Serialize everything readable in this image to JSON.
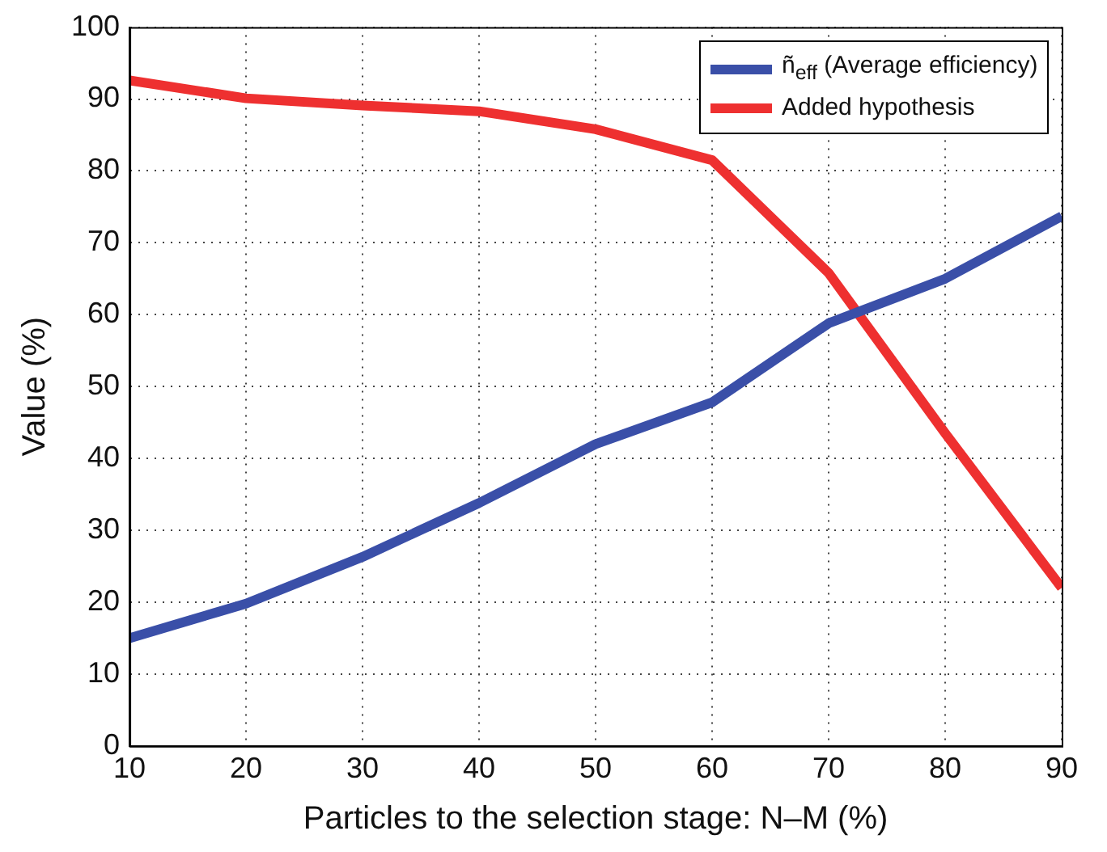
{
  "chart_data": {
    "type": "line",
    "xlabel": "Particles to the selection stage: N–M (%)",
    "ylabel": "Value (%)",
    "x": [
      10,
      20,
      30,
      40,
      50,
      60,
      70,
      80,
      90
    ],
    "series": [
      {
        "name": "ñ$_{eff}$ (Average efficiency)",
        "color": "#3a4fa8",
        "values": [
          15,
          19.8,
          26.3,
          33.8,
          42,
          47.8,
          58.8,
          65,
          73.7
        ]
      },
      {
        "name": "Added hypothesis",
        "color": "#ee3030",
        "values": [
          92.6,
          90.1,
          89.1,
          88.3,
          85.8,
          81.5,
          65.8,
          43.5,
          22
        ]
      }
    ],
    "xlim": [
      10,
      90
    ],
    "xticks": [
      10,
      20,
      30,
      40,
      50,
      60,
      70,
      80,
      90
    ],
    "ylim": [
      0,
      100
    ],
    "yticks": [
      0,
      10,
      20,
      30,
      40,
      50,
      60,
      70,
      80,
      90,
      100
    ],
    "grid": true,
    "legend": "top right",
    "marker": "none",
    "line_style": "solid"
  }
}
